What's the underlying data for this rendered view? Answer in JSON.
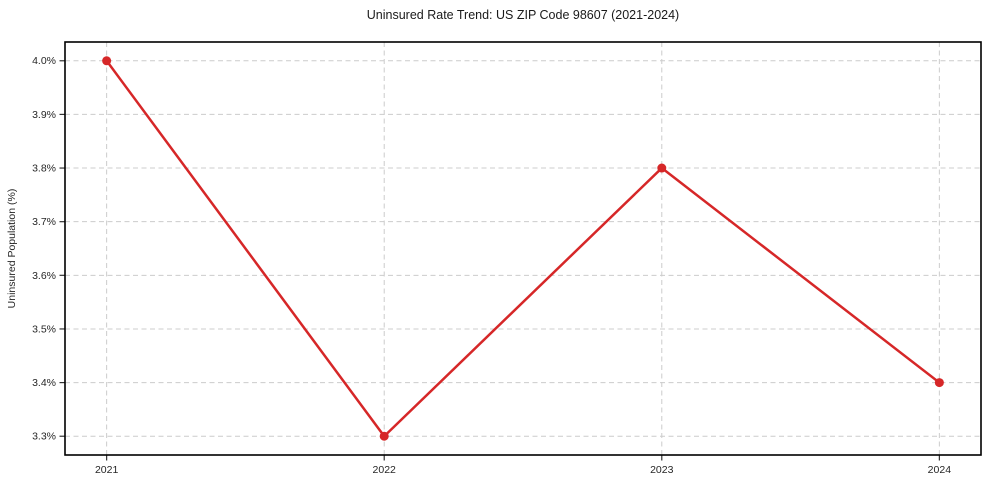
{
  "title": "Uninsured Rate Trend: US ZIP Code 98607 (2021-2024)",
  "chart_data": {
    "type": "line",
    "title": "Uninsured Rate Trend: US ZIP Code 98607 (2021-2024)",
    "xlabel": "",
    "ylabel": "Uninsured Population (%)",
    "categories": [
      "2021",
      "2022",
      "2023",
      "2024"
    ],
    "x": [
      2021,
      2022,
      2023,
      2024
    ],
    "series": [
      {
        "name": "Uninsured Population (%)",
        "values": [
          4.0,
          3.3,
          3.8,
          3.4
        ]
      }
    ],
    "y_tick_values": [
      3.3,
      3.4,
      3.5,
      3.6,
      3.7,
      3.8,
      3.9,
      4.0
    ],
    "y_tick_labels": [
      "3.3%",
      "3.4%",
      "3.5%",
      "3.6%",
      "3.7%",
      "3.8%",
      "3.9%",
      "4.0%"
    ],
    "xlim": [
      2020.85,
      2024.15
    ],
    "ylim": [
      3.265,
      4.035
    ],
    "grid": true,
    "grid_style": "dashed",
    "legend": "none",
    "colors": {
      "line": "#d62728",
      "marker": "#d62728",
      "grid": "#cccccc",
      "spine": "#000000",
      "tick": "#333333",
      "text": "#262626"
    }
  }
}
